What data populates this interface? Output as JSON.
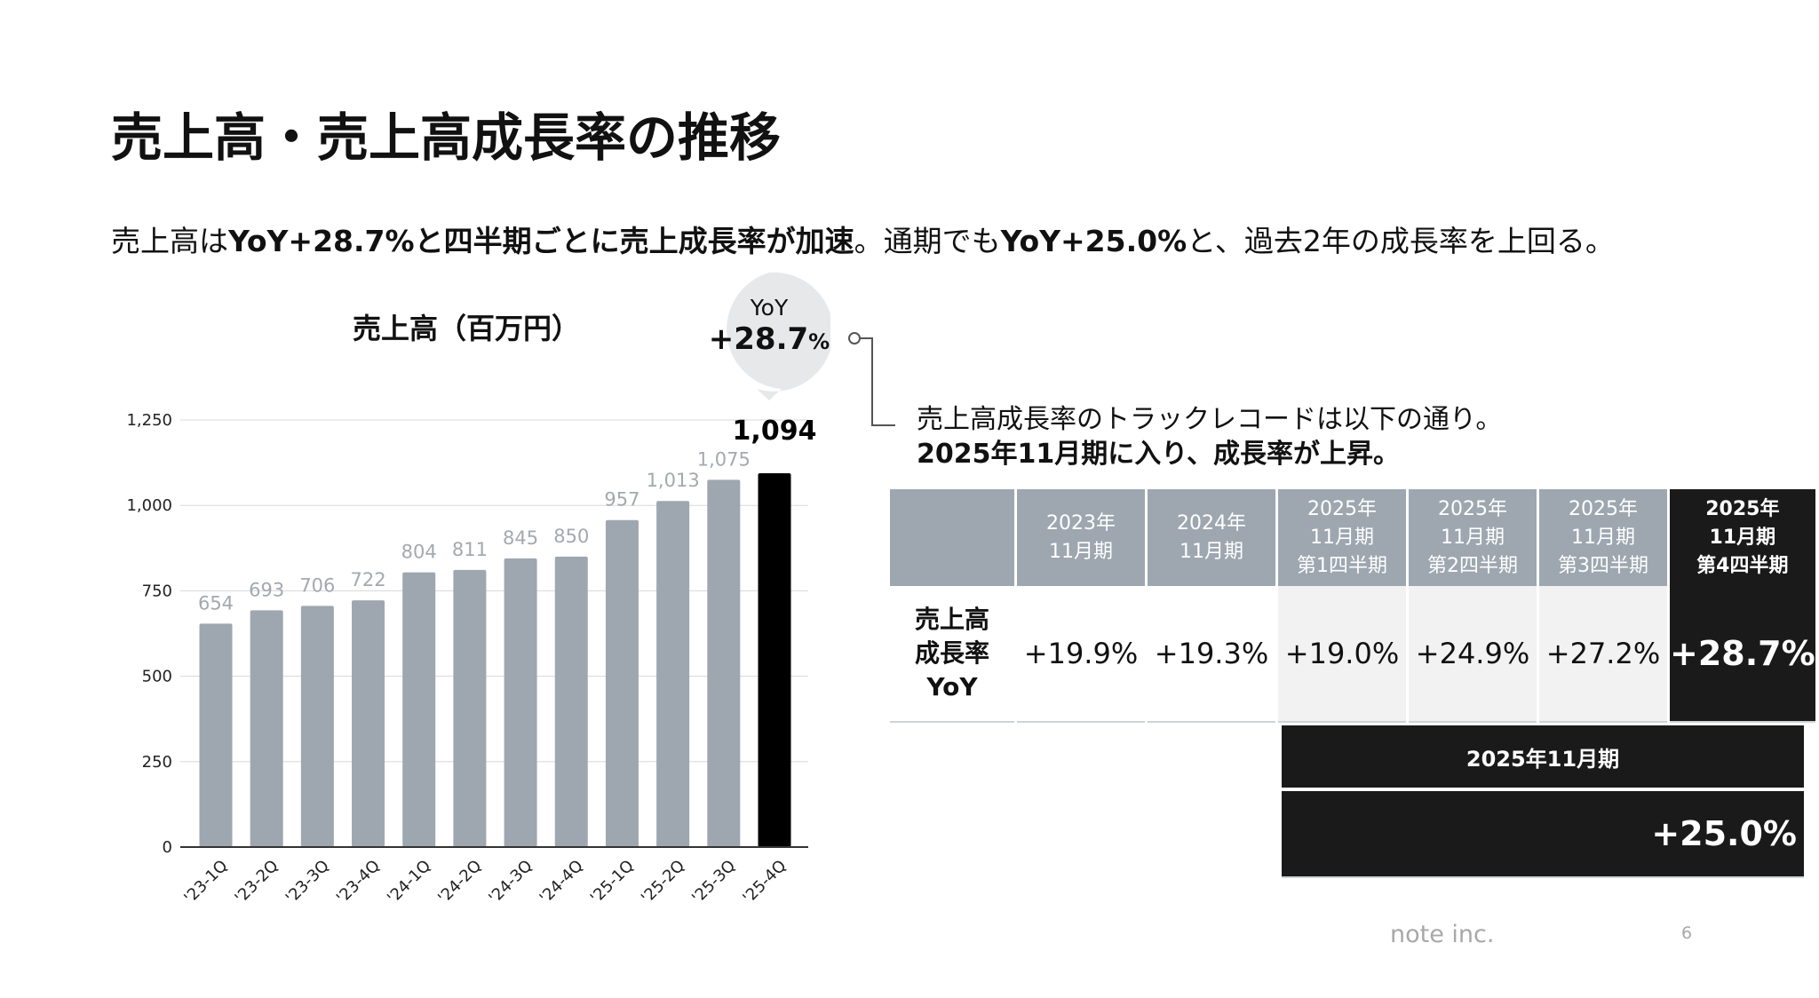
{
  "title": "売上高・売上高成長率の推移",
  "lead": {
    "p1": "売上高は",
    "b1": "YoY+28.7%と四半期ごとに売上成長率が加速",
    "p2": "。通期でも",
    "b2": "YoY+25.0%",
    "p3": "と、過去2年の成長率を上回る。"
  },
  "callout": {
    "label": "YoY",
    "value": "+28.7",
    "unit": "%"
  },
  "note": {
    "line1": "売上高成長率のトラックレコードは以下の通り。",
    "line2": "2025年11月期に入り、成長率が上昇。"
  },
  "table": {
    "headers": [
      "",
      "2023年\n11月期",
      "2024年\n11月期",
      "2025年\n11月期\n第1四半期",
      "2025年\n11月期\n第2四半期",
      "2025年\n11月期\n第3四半期",
      "2025年\n11月期\n第4四半期"
    ],
    "row_label": "売上高\n成長率\nYoY",
    "values": [
      "+19.9%",
      "+19.3%",
      "+19.0%",
      "+24.9%",
      "+27.2%",
      "+28.7%"
    ],
    "fy_label": "2025年11月期",
    "fy_value": "+25.0%"
  },
  "footer": {
    "brand": "note inc.",
    "page": "6"
  },
  "colors": {
    "bar": "#9ea7b0",
    "highlight": "#000000",
    "label": "#a3a9ae",
    "table_dark": "#1a1a1a"
  },
  "chart_data": {
    "type": "bar",
    "title": "売上高（百万円）",
    "categories": [
      "'23-1Q",
      "'23-2Q",
      "'23-3Q",
      "'23-4Q",
      "'24-1Q",
      "'24-2Q",
      "'24-3Q",
      "'24-4Q",
      "'25-1Q",
      "'25-2Q",
      "'25-3Q",
      "'25-4Q"
    ],
    "values": [
      654,
      693,
      706,
      722,
      804,
      811,
      845,
      850,
      957,
      1013,
      1075,
      1094
    ],
    "value_labels": [
      "654",
      "693",
      "706",
      "722",
      "804",
      "811",
      "845",
      "850",
      "957",
      "1,013",
      "1,075",
      "1,094"
    ],
    "highlight_index": 11,
    "ylim": [
      0,
      1250
    ],
    "yticks": [
      "0",
      "250",
      "500",
      "750",
      "1,000",
      "1,250"
    ],
    "ytick_values": [
      0,
      250,
      500,
      750,
      1000,
      1250
    ],
    "grid": true,
    "xlabel": "",
    "ylabel": ""
  }
}
